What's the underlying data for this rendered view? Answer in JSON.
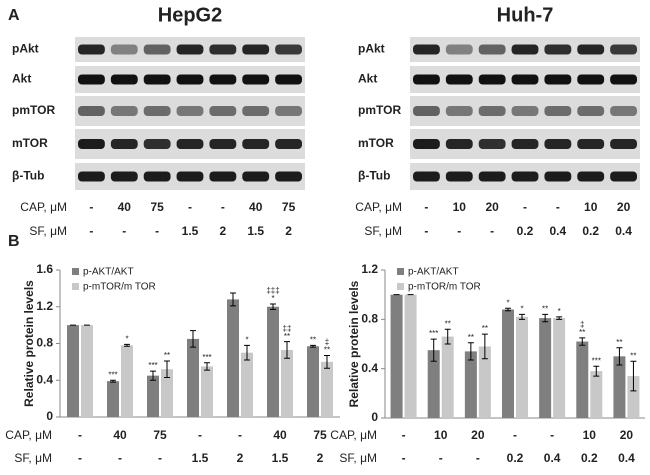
{
  "panel_a": {
    "label": "A",
    "blots": [
      {
        "title": "HepG2",
        "rows": [
          "pAkt",
          "Akt",
          "pmTOR",
          "mTOR",
          "β-Tub"
        ],
        "treatments": [
          {
            "label": "CAP, μM",
            "values": [
              "-",
              "40",
              "75",
              "-",
              "-",
              "40",
              "75"
            ]
          },
          {
            "label": "SF, μM",
            "values": [
              "-",
              "-",
              "-",
              "1.5",
              "2",
              "1.5",
              "2"
            ]
          }
        ]
      },
      {
        "title": "Huh-7",
        "rows": [
          "pAkt",
          "Akt",
          "pmTOR",
          "mTOR",
          "β-Tub"
        ],
        "treatments": [
          {
            "label": "CAP, μM",
            "values": [
              "-",
              "10",
              "20",
              "-",
              "-",
              "10",
              "20"
            ]
          },
          {
            "label": "SF, μM",
            "values": [
              "-",
              "-",
              "-",
              "0.2",
              "0.4",
              "0.2",
              "0.4"
            ]
          }
        ]
      }
    ]
  },
  "panel_b": {
    "label": "B"
  },
  "chart_data": [
    {
      "type": "bar",
      "y_label": "Relative protein levels",
      "categories": [
        null,
        null,
        null,
        null,
        null,
        null,
        null
      ],
      "x_rows": [
        {
          "label": "CAP, μM",
          "values": [
            "-",
            "40",
            "75",
            "-",
            "-",
            "40",
            "75"
          ]
        },
        {
          "label": "SF, μM",
          "values": [
            "-",
            "-",
            "-",
            "1.5",
            "2",
            "1.5",
            "2"
          ]
        }
      ],
      "ylim": [
        0,
        1.6
      ],
      "yticks": [
        0,
        0.4,
        0.8,
        1.2,
        1.6
      ],
      "series": [
        {
          "name": "p-AKT/AKT",
          "color": "#7f7f7f",
          "values": [
            1.0,
            0.39,
            0.45,
            0.85,
            1.28,
            1.2,
            0.77
          ],
          "errors": [
            0,
            0.01,
            0.05,
            0.09,
            0.07,
            0.03,
            0.01
          ],
          "annotations": [
            null,
            [
              "***"
            ],
            [
              "***"
            ],
            null,
            null,
            [
              "‡‡‡",
              "*"
            ],
            [
              "**"
            ]
          ]
        },
        {
          "name": "p-mTOR/m TOR",
          "color": "#c8c8c8",
          "values": [
            1.0,
            0.78,
            0.52,
            0.55,
            0.7,
            0.73,
            0.6
          ],
          "errors": [
            0,
            0.01,
            0.09,
            0.04,
            0.08,
            0.09,
            0.07
          ],
          "annotations": [
            null,
            [
              "*"
            ],
            [
              "**"
            ],
            [
              "***"
            ],
            [
              "*"
            ],
            [
              "‡‡",
              "**"
            ],
            [
              "‡",
              "**"
            ]
          ]
        }
      ]
    },
    {
      "type": "bar",
      "y_label": "Relative protein levels",
      "categories": [
        null,
        null,
        null,
        null,
        null,
        null,
        null
      ],
      "x_rows": [
        {
          "label": "CAP, μM",
          "values": [
            "-",
            "10",
            "20",
            "-",
            "-",
            "10",
            "20"
          ]
        },
        {
          "label": "SF, μM",
          "values": [
            "-",
            "-",
            "-",
            "0.2",
            "0.4",
            "0.2",
            "0.4"
          ]
        }
      ],
      "ylim": [
        0,
        1.2
      ],
      "yticks": [
        0,
        0.4,
        0.8,
        1.2
      ],
      "series": [
        {
          "name": "p-AKT/AKT",
          "color": "#7f7f7f",
          "values": [
            1.0,
            0.55,
            0.54,
            0.88,
            0.81,
            0.62,
            0.5
          ],
          "errors": [
            0,
            0.09,
            0.07,
            0.01,
            0.03,
            0.03,
            0.07
          ],
          "annotations": [
            null,
            [
              "***"
            ],
            [
              "**"
            ],
            [
              "*"
            ],
            [
              "**"
            ],
            [
              "‡",
              "**"
            ],
            [
              "**"
            ]
          ]
        },
        {
          "name": "p-mTOR/m TOR",
          "color": "#c8c8c8",
          "values": [
            1.0,
            0.66,
            0.58,
            0.82,
            0.81,
            0.38,
            0.34
          ],
          "errors": [
            0,
            0.06,
            0.1,
            0.02,
            0.01,
            0.04,
            0.12
          ],
          "annotations": [
            null,
            [
              "**"
            ],
            [
              "**"
            ],
            [
              "*"
            ],
            [
              "*"
            ],
            [
              "***"
            ],
            [
              "**"
            ]
          ]
        }
      ]
    }
  ]
}
